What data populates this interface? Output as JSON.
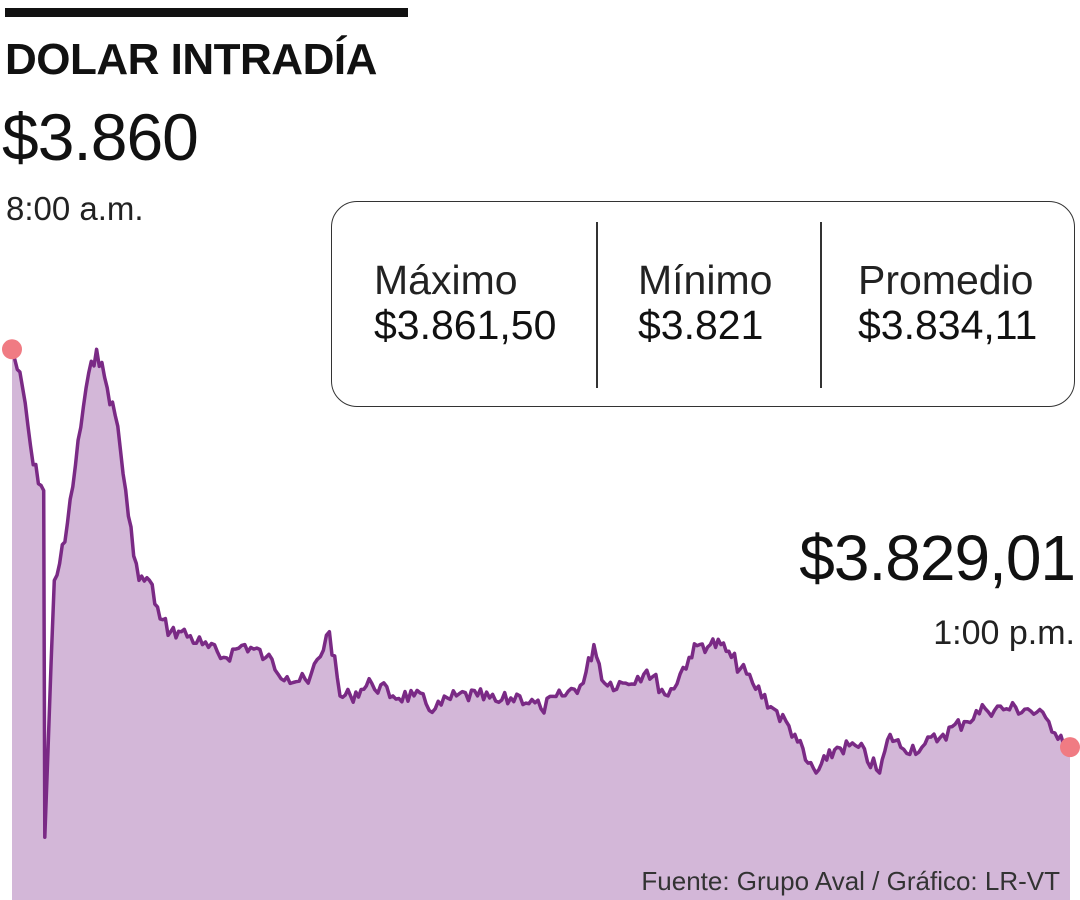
{
  "header": {
    "title": "DOLAR INTRADÍA",
    "open_value": "$3.860",
    "open_time": "8:00 a.m."
  },
  "stats": [
    {
      "label": "Máximo",
      "value": "$3.861,50"
    },
    {
      "label": "Mínimo",
      "value": "$3.821"
    },
    {
      "label": "Promedio",
      "value": "$3.834,11"
    }
  ],
  "close": {
    "value": "$3.829,01",
    "time": "1:00 p.m."
  },
  "footer": {
    "source": "Fuente: Grupo Aval  / Gráfico: LR-VT"
  },
  "colors": {
    "line": "#7a2a85",
    "area": "#d3b7d8",
    "marker": "#f07b83"
  },
  "chart_data": {
    "type": "area",
    "x_unit": "time",
    "x_range": [
      "8:00 a.m.",
      "1:00 p.m."
    ],
    "ylim": [
      3821,
      3861.5
    ],
    "x": [
      0,
      0.01,
      0.02,
      0.03,
      0.031,
      0.04,
      0.05,
      0.06,
      0.07,
      0.08,
      0.09,
      0.1,
      0.11,
      0.12,
      0.13,
      0.14,
      0.15,
      0.16,
      0.18,
      0.2,
      0.22,
      0.24,
      0.26,
      0.28,
      0.3,
      0.31,
      0.32,
      0.33,
      0.34,
      0.36,
      0.38,
      0.4,
      0.42,
      0.44,
      0.46,
      0.48,
      0.5,
      0.52,
      0.54,
      0.55,
      0.56,
      0.58,
      0.6,
      0.62,
      0.64,
      0.65,
      0.66,
      0.67,
      0.68,
      0.7,
      0.72,
      0.74,
      0.75,
      0.76,
      0.77,
      0.78,
      0.8,
      0.82,
      0.83,
      0.84,
      0.86,
      0.88,
      0.9,
      0.92,
      0.94,
      0.96,
      0.98,
      1
    ],
    "y": [
      3860,
      3857,
      3851,
      3849,
      3822,
      3842,
      3845,
      3851,
      3857,
      3860,
      3857,
      3854,
      3847,
      3842,
      3842,
      3839,
      3838,
      3838,
      3837,
      3836,
      3837,
      3836,
      3834.5,
      3834,
      3838,
      3833,
      3833,
      3833.5,
      3834,
      3833,
      3833,
      3832,
      3833,
      3833,
      3832.5,
      3833,
      3832,
      3833,
      3834,
      3837,
      3834,
      3834,
      3835,
      3833,
      3836,
      3837,
      3837,
      3837,
      3836,
      3834,
      3832,
      3830,
      3828,
      3827,
      3828,
      3829,
      3829,
      3827,
      3830,
      3829,
      3829,
      3830,
      3831,
      3832,
      3832,
      3832,
      3831,
      3829.01
    ]
  }
}
